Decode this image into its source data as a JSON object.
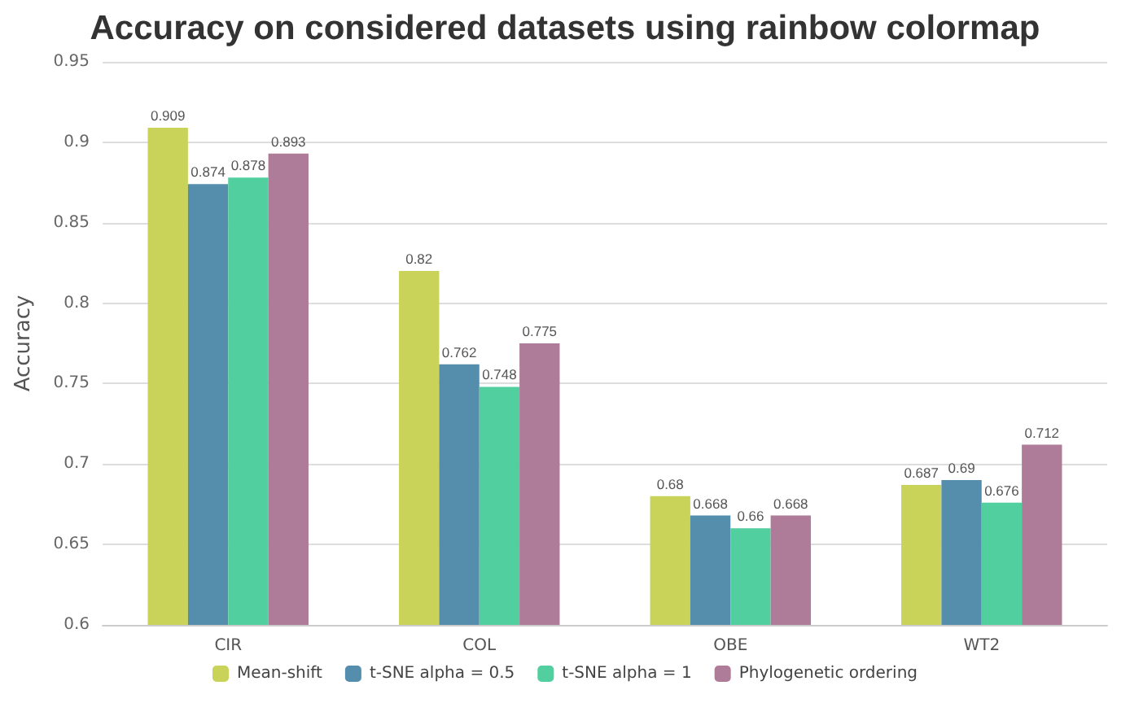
{
  "chart_data": {
    "type": "bar",
    "title": "Accuracy on considered datasets using rainbow colormap",
    "ylabel": "Accuracy",
    "categories": [
      "CIR",
      "COL",
      "OBE",
      "WT2"
    ],
    "series": [
      {
        "name": "Mean-shift",
        "color": "#c9d35a",
        "values": [
          0.909,
          0.82,
          0.68,
          0.687
        ]
      },
      {
        "name": "t-SNE alpha = 0.5",
        "color": "#558ead",
        "values": [
          0.874,
          0.762,
          0.668,
          0.69
        ]
      },
      {
        "name": "t-SNE alpha = 1",
        "color": "#51cf9e",
        "values": [
          0.878,
          0.748,
          0.66,
          0.676
        ]
      },
      {
        "name": "Phylogenetic ordering",
        "color": "#ae7c98",
        "values": [
          0.893,
          0.775,
          0.668,
          0.712
        ]
      }
    ],
    "ylim": [
      0.6,
      0.95
    ],
    "yticks": [
      0.6,
      0.65,
      0.7,
      0.75,
      0.8,
      0.85,
      0.9,
      0.95
    ],
    "grid": "y",
    "legend": "bottom",
    "data_labels": true
  }
}
